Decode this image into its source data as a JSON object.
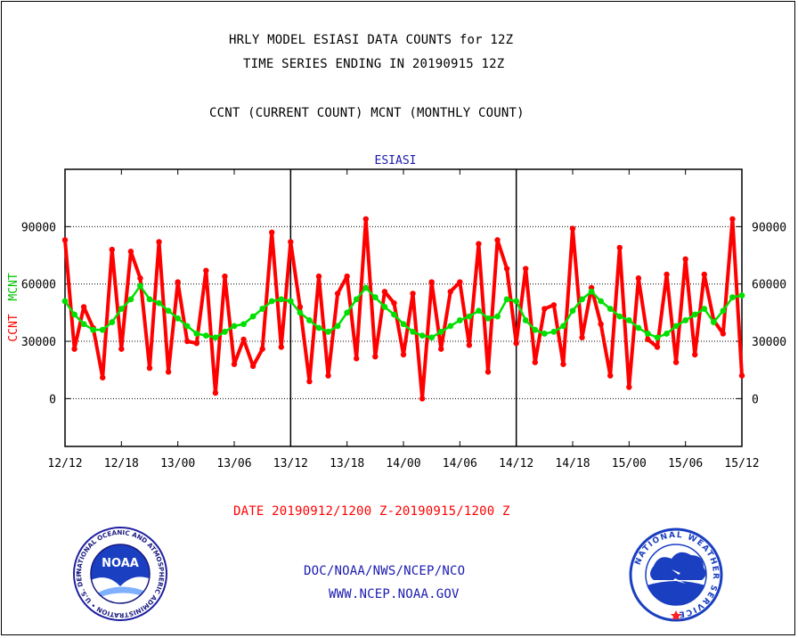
{
  "header": {
    "title_line1": "HRLY MODEL ESIASI DATA COUNTS for 12Z",
    "title_line2": "TIME SERIES ENDING IN 20190915 12Z",
    "subtitle": "CCNT (CURRENT COUNT) MCNT (MONTHLY COUNT)"
  },
  "footer": {
    "date_range": "DATE 20190912/1200 Z-20190915/1200 Z",
    "org_path": "DOC/NOAA/NWS/NCEP/NCO",
    "website": "WWW.NCEP.NOAA.GOV"
  },
  "logos": {
    "noaa_text": "NOAA",
    "noaa_ring": "NATIONAL OCEANIC AND ATMOSPHERIC ADMINISTRATION • U.S. DEPARTMENT OF COMMERCE •",
    "nws_ring": "NATIONAL WEATHER SERVICE"
  },
  "colors": {
    "ccnt": "#ff0000",
    "mcnt": "#00e000",
    "title_blue": "#1a1ab0",
    "gridline": "#000000"
  },
  "chart_data": {
    "type": "line",
    "title": "ESIASI",
    "ylabel_left": [
      "CCNT",
      "MCNT"
    ],
    "ylim": [
      -25000,
      120000
    ],
    "yticks": [
      0,
      30000,
      60000,
      90000
    ],
    "ytick_labels": [
      "0",
      "30000",
      "60000",
      "90000"
    ],
    "x_range_hours": [
      0,
      72
    ],
    "xticks": [
      0,
      6,
      12,
      18,
      24,
      30,
      36,
      42,
      48,
      54,
      60,
      66,
      72
    ],
    "xtick_labels": [
      "12/12",
      "12/18",
      "13/00",
      "13/06",
      "13/12",
      "13/18",
      "14/00",
      "14/06",
      "14/12",
      "14/18",
      "15/00",
      "15/06",
      "15/12"
    ],
    "major_dividers": [
      24,
      48
    ],
    "grid": "dotted horizontal",
    "series": [
      {
        "name": "CCNT",
        "color": "#ff0000",
        "values": [
          83000,
          26000,
          48000,
          37000,
          11000,
          78000,
          26000,
          77000,
          63000,
          16000,
          82000,
          14000,
          61000,
          30000,
          29000,
          67000,
          3000,
          64000,
          18000,
          31000,
          17000,
          26000,
          87000,
          27000,
          82000,
          48000,
          9000,
          64000,
          12000,
          55000,
          64000,
          21000,
          94000,
          22000,
          56000,
          50000,
          23000,
          55000,
          0,
          61000,
          26000,
          56000,
          61000,
          28000,
          81000,
          14000,
          83000,
          68000,
          29000,
          68000,
          19000,
          47000,
          49000,
          18000,
          89000,
          32000,
          58000,
          39000,
          12000,
          79000,
          6000,
          63000,
          31000,
          27000,
          65000,
          19000,
          73000,
          23000,
          65000,
          41000,
          34000,
          94000,
          12000
        ]
      },
      {
        "name": "MCNT",
        "color": "#00e000",
        "values": [
          51000,
          44000,
          39000,
          36000,
          36000,
          40000,
          47000,
          52000,
          59000,
          52000,
          50000,
          46000,
          42000,
          38000,
          34000,
          33000,
          32000,
          35000,
          38000,
          39000,
          43000,
          47000,
          51000,
          52000,
          51000,
          45000,
          41000,
          37000,
          35000,
          38000,
          45000,
          52000,
          58000,
          53000,
          48000,
          44000,
          39000,
          35000,
          33000,
          32000,
          35000,
          38000,
          41000,
          43000,
          46000,
          42000,
          43000,
          52000,
          51000,
          41000,
          36000,
          34000,
          35000,
          38000,
          46000,
          52000,
          56000,
          51000,
          47000,
          43000,
          41000,
          37000,
          34000,
          32000,
          34000,
          38000,
          41000,
          44000,
          47000,
          40000,
          46000,
          53000,
          54000
        ]
      }
    ]
  }
}
